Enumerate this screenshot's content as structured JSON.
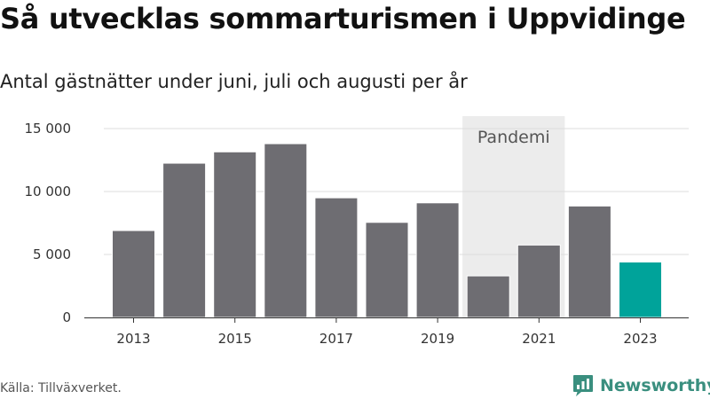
{
  "chart_data": {
    "type": "bar",
    "title": "Så utvecklas sommarturismen i Uppvidinge",
    "subtitle": "Antal gästnätter under juni, juli och augusti per år",
    "categories": [
      "2013",
      "2014",
      "2015",
      "2016",
      "2017",
      "2018",
      "2019",
      "2020",
      "2021",
      "2022",
      "2023"
    ],
    "x_tick_labels": [
      "2013",
      "2015",
      "2017",
      "2019",
      "2021",
      "2023"
    ],
    "values": [
      6900,
      12250,
      13150,
      13800,
      9500,
      7550,
      9100,
      3300,
      5750,
      8850,
      4400
    ],
    "ylim": [
      0,
      15000
    ],
    "y_ticks": [
      0,
      5000,
      10000,
      15000
    ],
    "y_tick_labels": [
      "0",
      "5 000",
      "10 000",
      "15 000"
    ],
    "grid": true,
    "colors": {
      "default": "#6e6d72",
      "highlight": "#00a39a",
      "band": "#ececec",
      "grid": "#dcdcdc",
      "axis": "#333333"
    },
    "highlight_category": "2023",
    "annotation": {
      "label": "Pandemi",
      "from": "2020",
      "to": "2021"
    }
  },
  "footer": {
    "source": "Källa: Tillväxverket.",
    "brand": "Newsworthy",
    "brand_icon": "newsworthy-logo-icon",
    "brand_color": "#3a8f7f"
  }
}
